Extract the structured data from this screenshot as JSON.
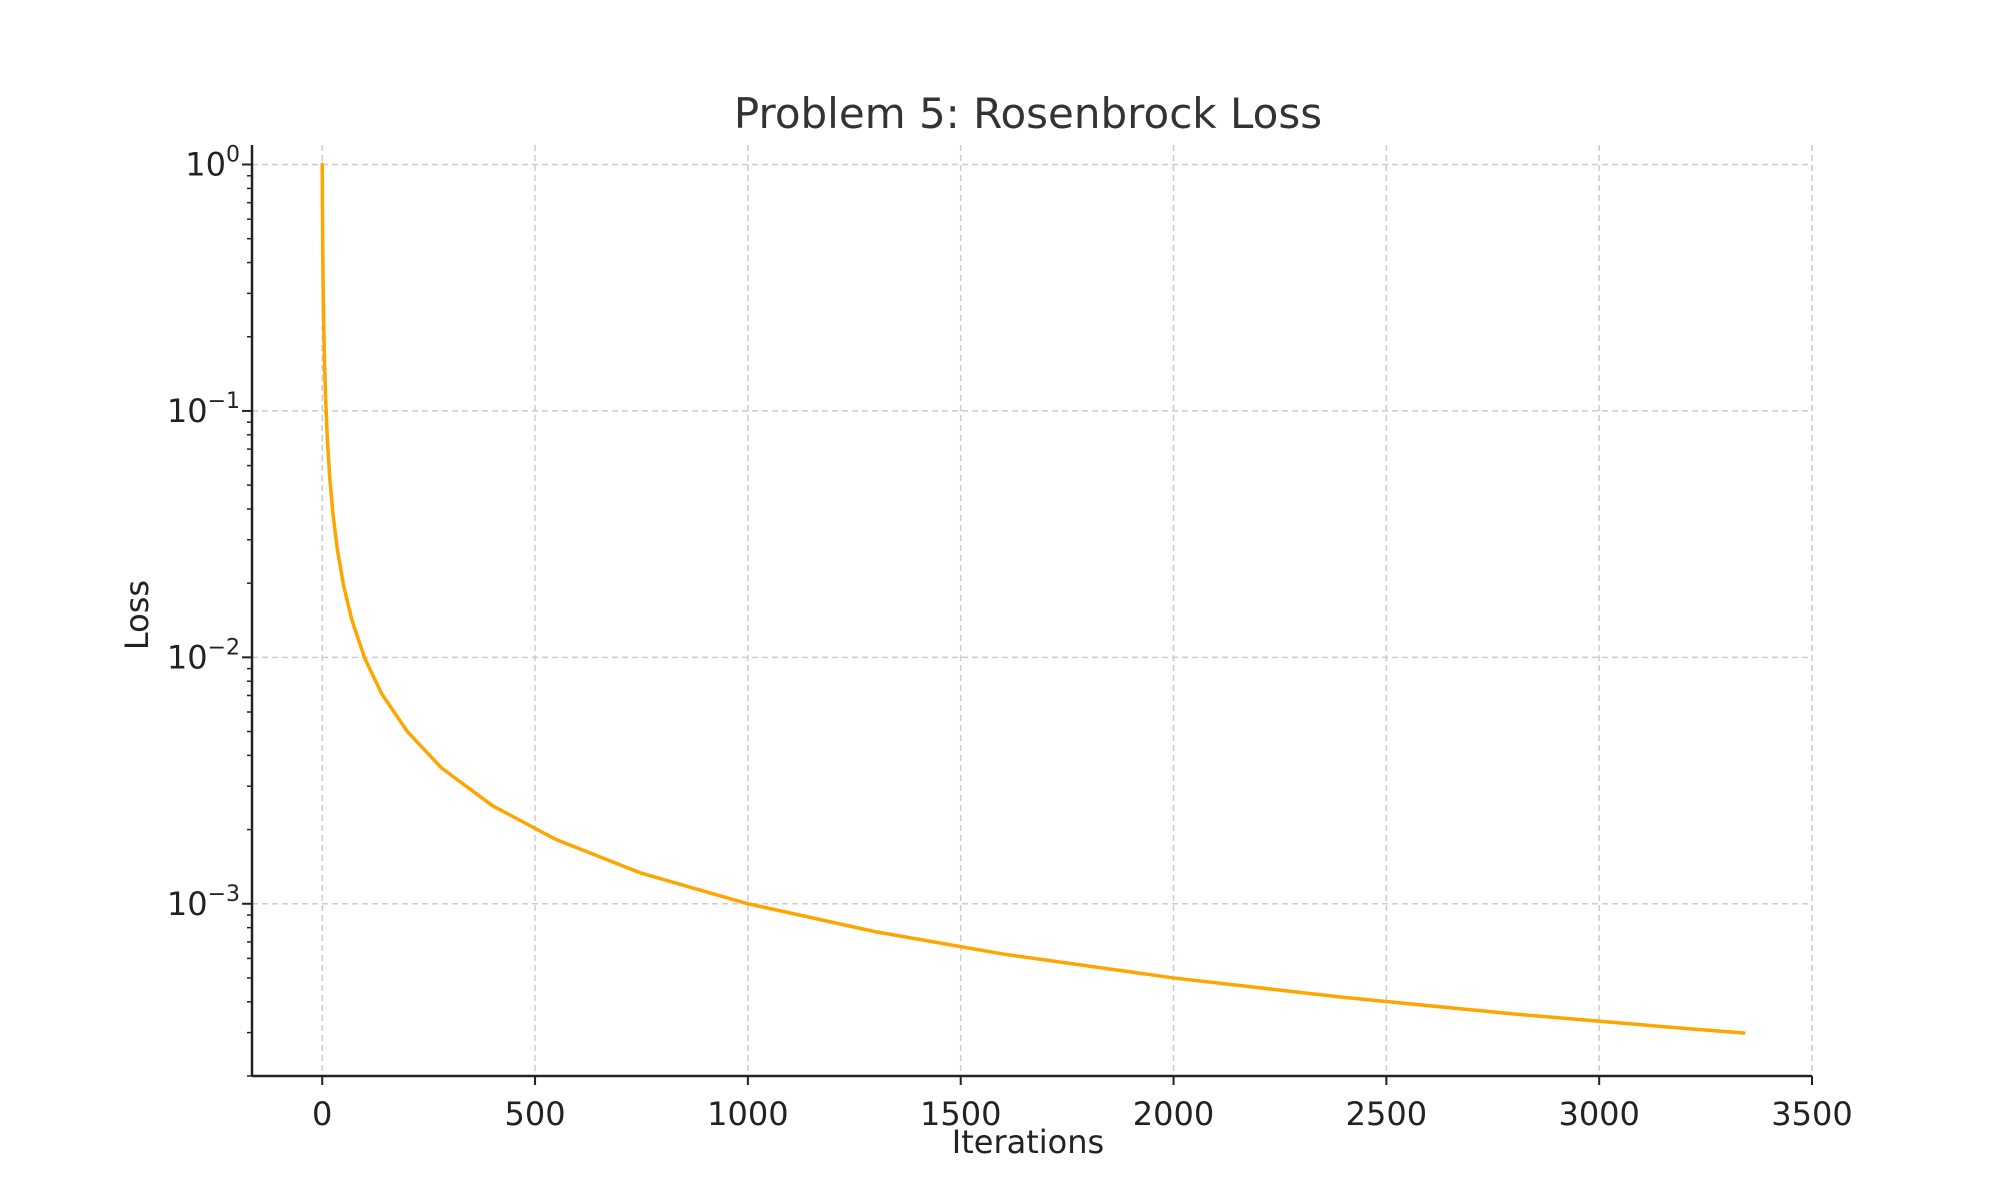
{
  "chart_data": {
    "type": "line",
    "title": "Problem 5: Rosenbrock Loss",
    "xlabel": "Iterations",
    "ylabel": "Loss",
    "xlim": [
      -165,
      3500
    ],
    "ylim": [
      0.0002,
      1.2
    ],
    "yscale": "log",
    "grid": true,
    "legend": "none",
    "x_ticks": [
      0,
      500,
      1000,
      1500,
      2000,
      2500,
      3000,
      3500
    ],
    "y_ticks": [
      {
        "value": 1,
        "base": "10",
        "exp": "0"
      },
      {
        "value": 0.1,
        "base": "10",
        "exp": "−1"
      },
      {
        "value": 0.01,
        "base": "10",
        "exp": "−2"
      },
      {
        "value": 0.001,
        "base": "10",
        "exp": "−3"
      }
    ],
    "series": [
      {
        "color": "#FFA500",
        "x": [
          0,
          1,
          2,
          3,
          5,
          8,
          12,
          18,
          25,
          35,
          50,
          70,
          100,
          140,
          200,
          280,
          400,
          550,
          750,
          1000,
          1300,
          1600,
          2000,
          2400,
          2800,
          3200,
          3340
        ],
        "y": [
          1.0,
          0.5,
          0.333,
          0.25,
          0.1667,
          0.1111,
          0.0769,
          0.0526,
          0.0385,
          0.0278,
          0.0196,
          0.0141,
          0.0099,
          0.0071,
          0.005,
          0.00356,
          0.0025,
          0.00182,
          0.00133,
          0.001,
          0.00077,
          0.000625,
          0.0005,
          0.000417,
          0.000357,
          0.000312,
          0.000299
        ]
      }
    ]
  }
}
